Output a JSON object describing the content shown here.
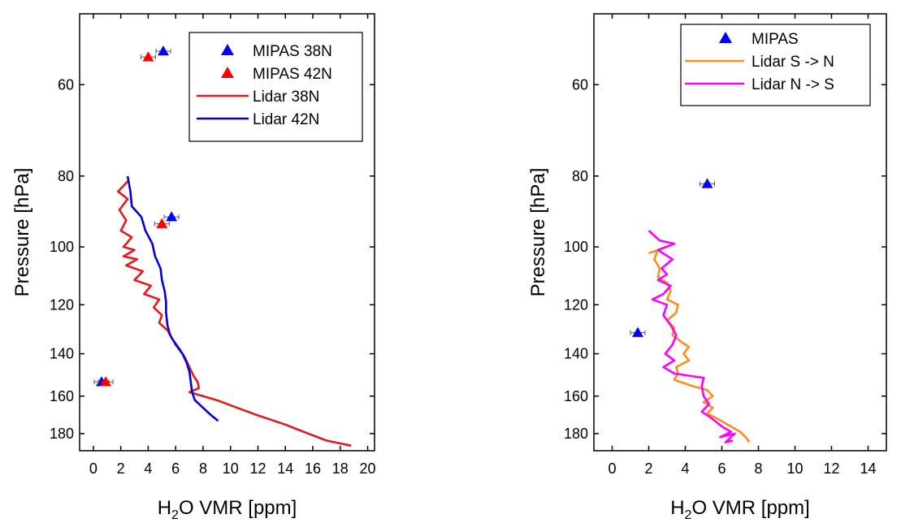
{
  "chart_data": [
    {
      "type": "line",
      "xlabel_main": "H",
      "xlabel_sub": "2",
      "xlabel_rest": "O VMR  [ppm]",
      "ylabel": "Pressure  [hPa]",
      "xlim": [
        -1,
        20.5
      ],
      "ylim": [
        48,
        190
      ],
      "y_scale": "log",
      "xticks": [
        0,
        2,
        4,
        6,
        8,
        10,
        12,
        14,
        16,
        18,
        20
      ],
      "yticks": [
        60,
        80,
        100,
        120,
        140,
        160,
        180
      ],
      "legend_position": "top-right",
      "series": [
        {
          "name": "MIPAS 38N",
          "kind": "marker",
          "color": "#0000ff",
          "points": [
            [
              5.1,
              54
            ],
            [
              5.7,
              91
            ],
            [
              0.6,
              153
            ]
          ]
        },
        {
          "name": "MIPAS 42N",
          "kind": "marker",
          "color": "#ff0000",
          "points": [
            [
              4.0,
              55
            ],
            [
              5.0,
              93
            ],
            [
              0.9,
              153
            ]
          ]
        },
        {
          "name": "Lidar 38N",
          "kind": "line",
          "color": "#e31a1c",
          "points": [
            [
              2.6,
              81
            ],
            [
              1.8,
              84
            ],
            [
              2.5,
              86
            ],
            [
              1.9,
              89
            ],
            [
              2.4,
              92
            ],
            [
              2.0,
              95
            ],
            [
              2.8,
              97
            ],
            [
              2.2,
              100
            ],
            [
              3.0,
              101
            ],
            [
              2.2,
              103
            ],
            [
              3.2,
              104
            ],
            [
              2.4,
              106
            ],
            [
              3.6,
              108
            ],
            [
              3.0,
              111
            ],
            [
              4.2,
              113
            ],
            [
              3.7,
              116
            ],
            [
              4.8,
              118
            ],
            [
              4.4,
              121
            ],
            [
              5.0,
              124
            ],
            [
              4.8,
              127
            ],
            [
              5.4,
              130
            ],
            [
              5.8,
              134
            ],
            [
              6.3,
              138
            ],
            [
              6.7,
              142
            ],
            [
              7.0,
              146
            ],
            [
              7.3,
              150
            ],
            [
              7.6,
              153
            ],
            [
              7.7,
              156
            ],
            [
              7.0,
              158
            ],
            [
              9.0,
              162
            ],
            [
              10.5,
              166
            ],
            [
              12.0,
              170
            ],
            [
              14.0,
              175
            ],
            [
              15.0,
              178
            ],
            [
              16.0,
              181
            ],
            [
              17.0,
              184
            ],
            [
              18.8,
              187
            ]
          ]
        },
        {
          "name": "Lidar 42N",
          "kind": "line",
          "color": "#0000dd",
          "points": [
            [
              2.5,
              80
            ],
            [
              2.7,
              84
            ],
            [
              2.8,
              88
            ],
            [
              3.5,
              91
            ],
            [
              3.8,
              95
            ],
            [
              4.3,
              99
            ],
            [
              4.5,
              103
            ],
            [
              4.9,
              107
            ],
            [
              5.0,
              111
            ],
            [
              5.2,
              115
            ],
            [
              5.3,
              119
            ],
            [
              5.3,
              123
            ],
            [
              5.4,
              128
            ],
            [
              5.6,
              132
            ],
            [
              6.0,
              136
            ],
            [
              6.5,
              140
            ],
            [
              6.8,
              144
            ],
            [
              7.0,
              148
            ],
            [
              7.1,
              153
            ],
            [
              7.2,
              158
            ],
            [
              7.4,
              162
            ],
            [
              8.0,
              166
            ],
            [
              8.6,
              170
            ],
            [
              9.1,
              173
            ]
          ]
        }
      ]
    },
    {
      "type": "line",
      "xlabel_main": "H",
      "xlabel_sub": "2",
      "xlabel_rest": "O VMR  [ppm]",
      "ylabel": "Pressure  [hPa]",
      "xlim": [
        -1,
        15
      ],
      "ylim": [
        48,
        190
      ],
      "y_scale": "log",
      "xticks": [
        0,
        2,
        4,
        6,
        8,
        10,
        12,
        14
      ],
      "yticks": [
        60,
        80,
        100,
        120,
        140,
        160,
        180
      ],
      "legend_position": "top-right",
      "series": [
        {
          "name": "MIPAS",
          "kind": "marker",
          "color": "#0000ff",
          "points": [
            [
              5.2,
              82
            ],
            [
              1.4,
              131
            ]
          ]
        },
        {
          "name": "Lidar S -> N",
          "kind": "line",
          "color": "#ff8c1a",
          "points": [
            [
              2.0,
              102
            ],
            [
              2.5,
              101
            ],
            [
              2.3,
              104
            ],
            [
              2.6,
              107
            ],
            [
              2.5,
              110
            ],
            [
              3.0,
              112
            ],
            [
              3.2,
              115
            ],
            [
              3.0,
              118
            ],
            [
              3.6,
              120
            ],
            [
              3.5,
              123
            ],
            [
              3.0,
              126
            ],
            [
              3.4,
              129
            ],
            [
              3.3,
              132
            ],
            [
              3.8,
              135
            ],
            [
              4.2,
              137
            ],
            [
              3.9,
              140
            ],
            [
              4.2,
              143
            ],
            [
              3.5,
              146
            ],
            [
              3.6,
              149
            ],
            [
              3.4,
              152
            ],
            [
              4.4,
              155
            ],
            [
              5.2,
              157
            ],
            [
              5.5,
              160
            ],
            [
              5.0,
              163
            ],
            [
              5.5,
              166
            ],
            [
              5.2,
              169
            ],
            [
              5.8,
              172
            ],
            [
              6.5,
              176
            ],
            [
              7.0,
              179
            ],
            [
              7.3,
              182
            ],
            [
              7.5,
              185
            ]
          ]
        },
        {
          "name": "Lidar N -> S",
          "kind": "line",
          "color": "#ff00ff",
          "points": [
            [
              2.0,
              95
            ],
            [
              2.6,
              98
            ],
            [
              3.4,
              99
            ],
            [
              2.5,
              101
            ],
            [
              3.3,
              104
            ],
            [
              2.7,
              107
            ],
            [
              3.0,
              109
            ],
            [
              2.5,
              111
            ],
            [
              3.2,
              113
            ],
            [
              2.8,
              116
            ],
            [
              2.2,
              118
            ],
            [
              3.0,
              120
            ],
            [
              2.8,
              124
            ],
            [
              3.2,
              128
            ],
            [
              3.5,
              132
            ],
            [
              3.3,
              136
            ],
            [
              2.9,
              140
            ],
            [
              3.4,
              143
            ],
            [
              2.8,
              146
            ],
            [
              3.4,
              149
            ],
            [
              4.2,
              150
            ],
            [
              5.0,
              151
            ],
            [
              4.9,
              155
            ],
            [
              5.0,
              160
            ],
            [
              5.3,
              164
            ],
            [
              4.9,
              168
            ],
            [
              5.5,
              172
            ],
            [
              6.0,
              176
            ],
            [
              6.5,
              179
            ],
            [
              5.9,
              182
            ],
            [
              6.7,
              180
            ],
            [
              6.2,
              185
            ],
            [
              6.6,
              184
            ]
          ]
        }
      ]
    }
  ]
}
